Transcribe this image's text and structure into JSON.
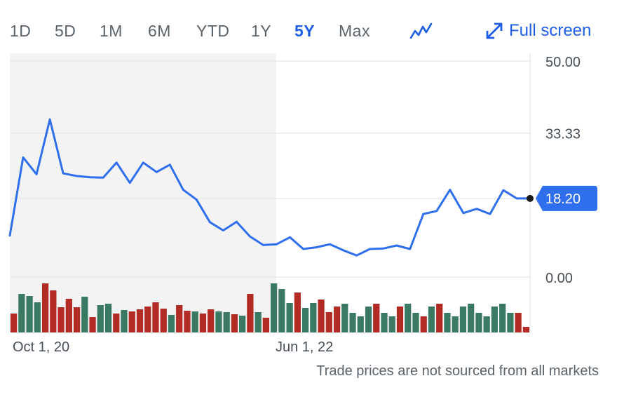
{
  "range_buttons": [
    "1D",
    "5D",
    "1M",
    "6M",
    "YTD",
    "1Y",
    "5Y",
    "Max"
  ],
  "active_range": "5Y",
  "chart_type_icon": "line-chart-icon",
  "fullscreen": {
    "label": "Full screen",
    "icon": "expand-icon"
  },
  "footnote": "Trade prices are not sourced from all markets",
  "colors": {
    "line": "#2f6fed",
    "accent": "#1e5fe6",
    "volume_up": "#3a7a63",
    "volume_down": "#b32b25",
    "shaded": "#f3f3f3",
    "grid": "#e6e6e6"
  },
  "chart_data": {
    "type": "line",
    "x_ticks": [
      "Oct 1, 20",
      "Jun 1, 22"
    ],
    "y_ticks": [
      "50.00",
      "33.33",
      "0.00"
    ],
    "ylim": [
      0,
      50
    ],
    "current_price": 18.2,
    "current_price_label": "18.20",
    "price": [
      9.6,
      27.7,
      23.8,
      36.5,
      24.0,
      23.4,
      23.1,
      23.0,
      26.5,
      21.8,
      26.5,
      24.3,
      26.0,
      20.2,
      17.9,
      12.7,
      10.8,
      12.8,
      9.4,
      7.4,
      7.6,
      9.2,
      6.5,
      6.9,
      7.6,
      6.2,
      5.0,
      6.5,
      6.6,
      7.3,
      6.5,
      14.6,
      15.3,
      20.2,
      14.8,
      15.8,
      14.6,
      20.1,
      18.2,
      18.2
    ],
    "volume_direction": [
      "d",
      "u",
      "u",
      "u",
      "d",
      "d",
      "d",
      "d",
      "d",
      "u",
      "d",
      "u",
      "u",
      "d",
      "u",
      "d",
      "d",
      "d",
      "d",
      "d",
      "u",
      "d",
      "d",
      "u",
      "d",
      "d",
      "u",
      "u",
      "d",
      "u",
      "d",
      "u",
      "d",
      "u",
      "u",
      "u",
      "d",
      "u",
      "u",
      "d",
      "d",
      "d",
      "u",
      "u",
      "u",
      "u",
      "d",
      "u",
      "u",
      "d",
      "u",
      "u",
      "d",
      "u",
      "d",
      "u",
      "u",
      "u",
      "u",
      "u",
      "u",
      "u",
      "u",
      "u",
      "d",
      "d"
    ]
  }
}
